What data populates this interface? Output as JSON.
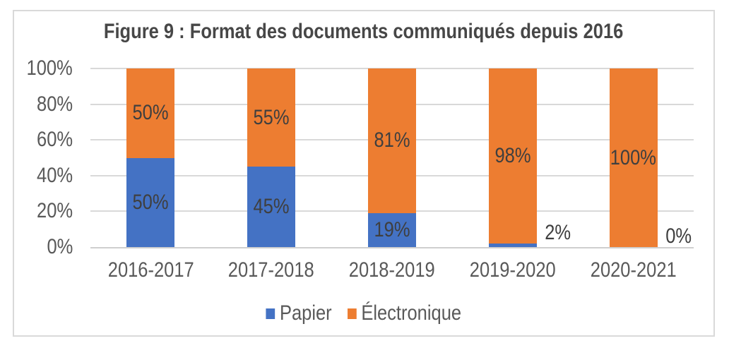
{
  "chart_data": {
    "type": "bar",
    "stacked": true,
    "title": "Figure 9 : Format des documents communiqués depuis 2016",
    "categories": [
      "2016-2017",
      "2017-2018",
      "2018-2019",
      "2019-2020",
      "2020-2021"
    ],
    "series": [
      {
        "name": "Papier",
        "color": "#4472C4",
        "values": [
          50,
          45,
          19,
          2,
          0
        ],
        "labels": [
          "50%",
          "45%",
          "19%",
          "2%",
          "0%"
        ]
      },
      {
        "name": "Électronique",
        "color": "#ED7D31",
        "values": [
          50,
          55,
          81,
          98,
          100
        ],
        "labels": [
          "50%",
          "55%",
          "81%",
          "98%",
          "100%"
        ]
      }
    ],
    "xlabel": "",
    "ylabel": "",
    "ylim": [
      0,
      100
    ],
    "y_ticks": [
      "0%",
      "20%",
      "40%",
      "60%",
      "80%",
      "100%"
    ],
    "grid": true,
    "legend_position": "bottom",
    "grid_color": "#D9D9D9",
    "axis_line_color": "#CFCFCF",
    "border_color": "#D9D9D9",
    "title_color": "#474747",
    "data_label_color": "#3F3F3F",
    "tick_color": "#595959"
  }
}
